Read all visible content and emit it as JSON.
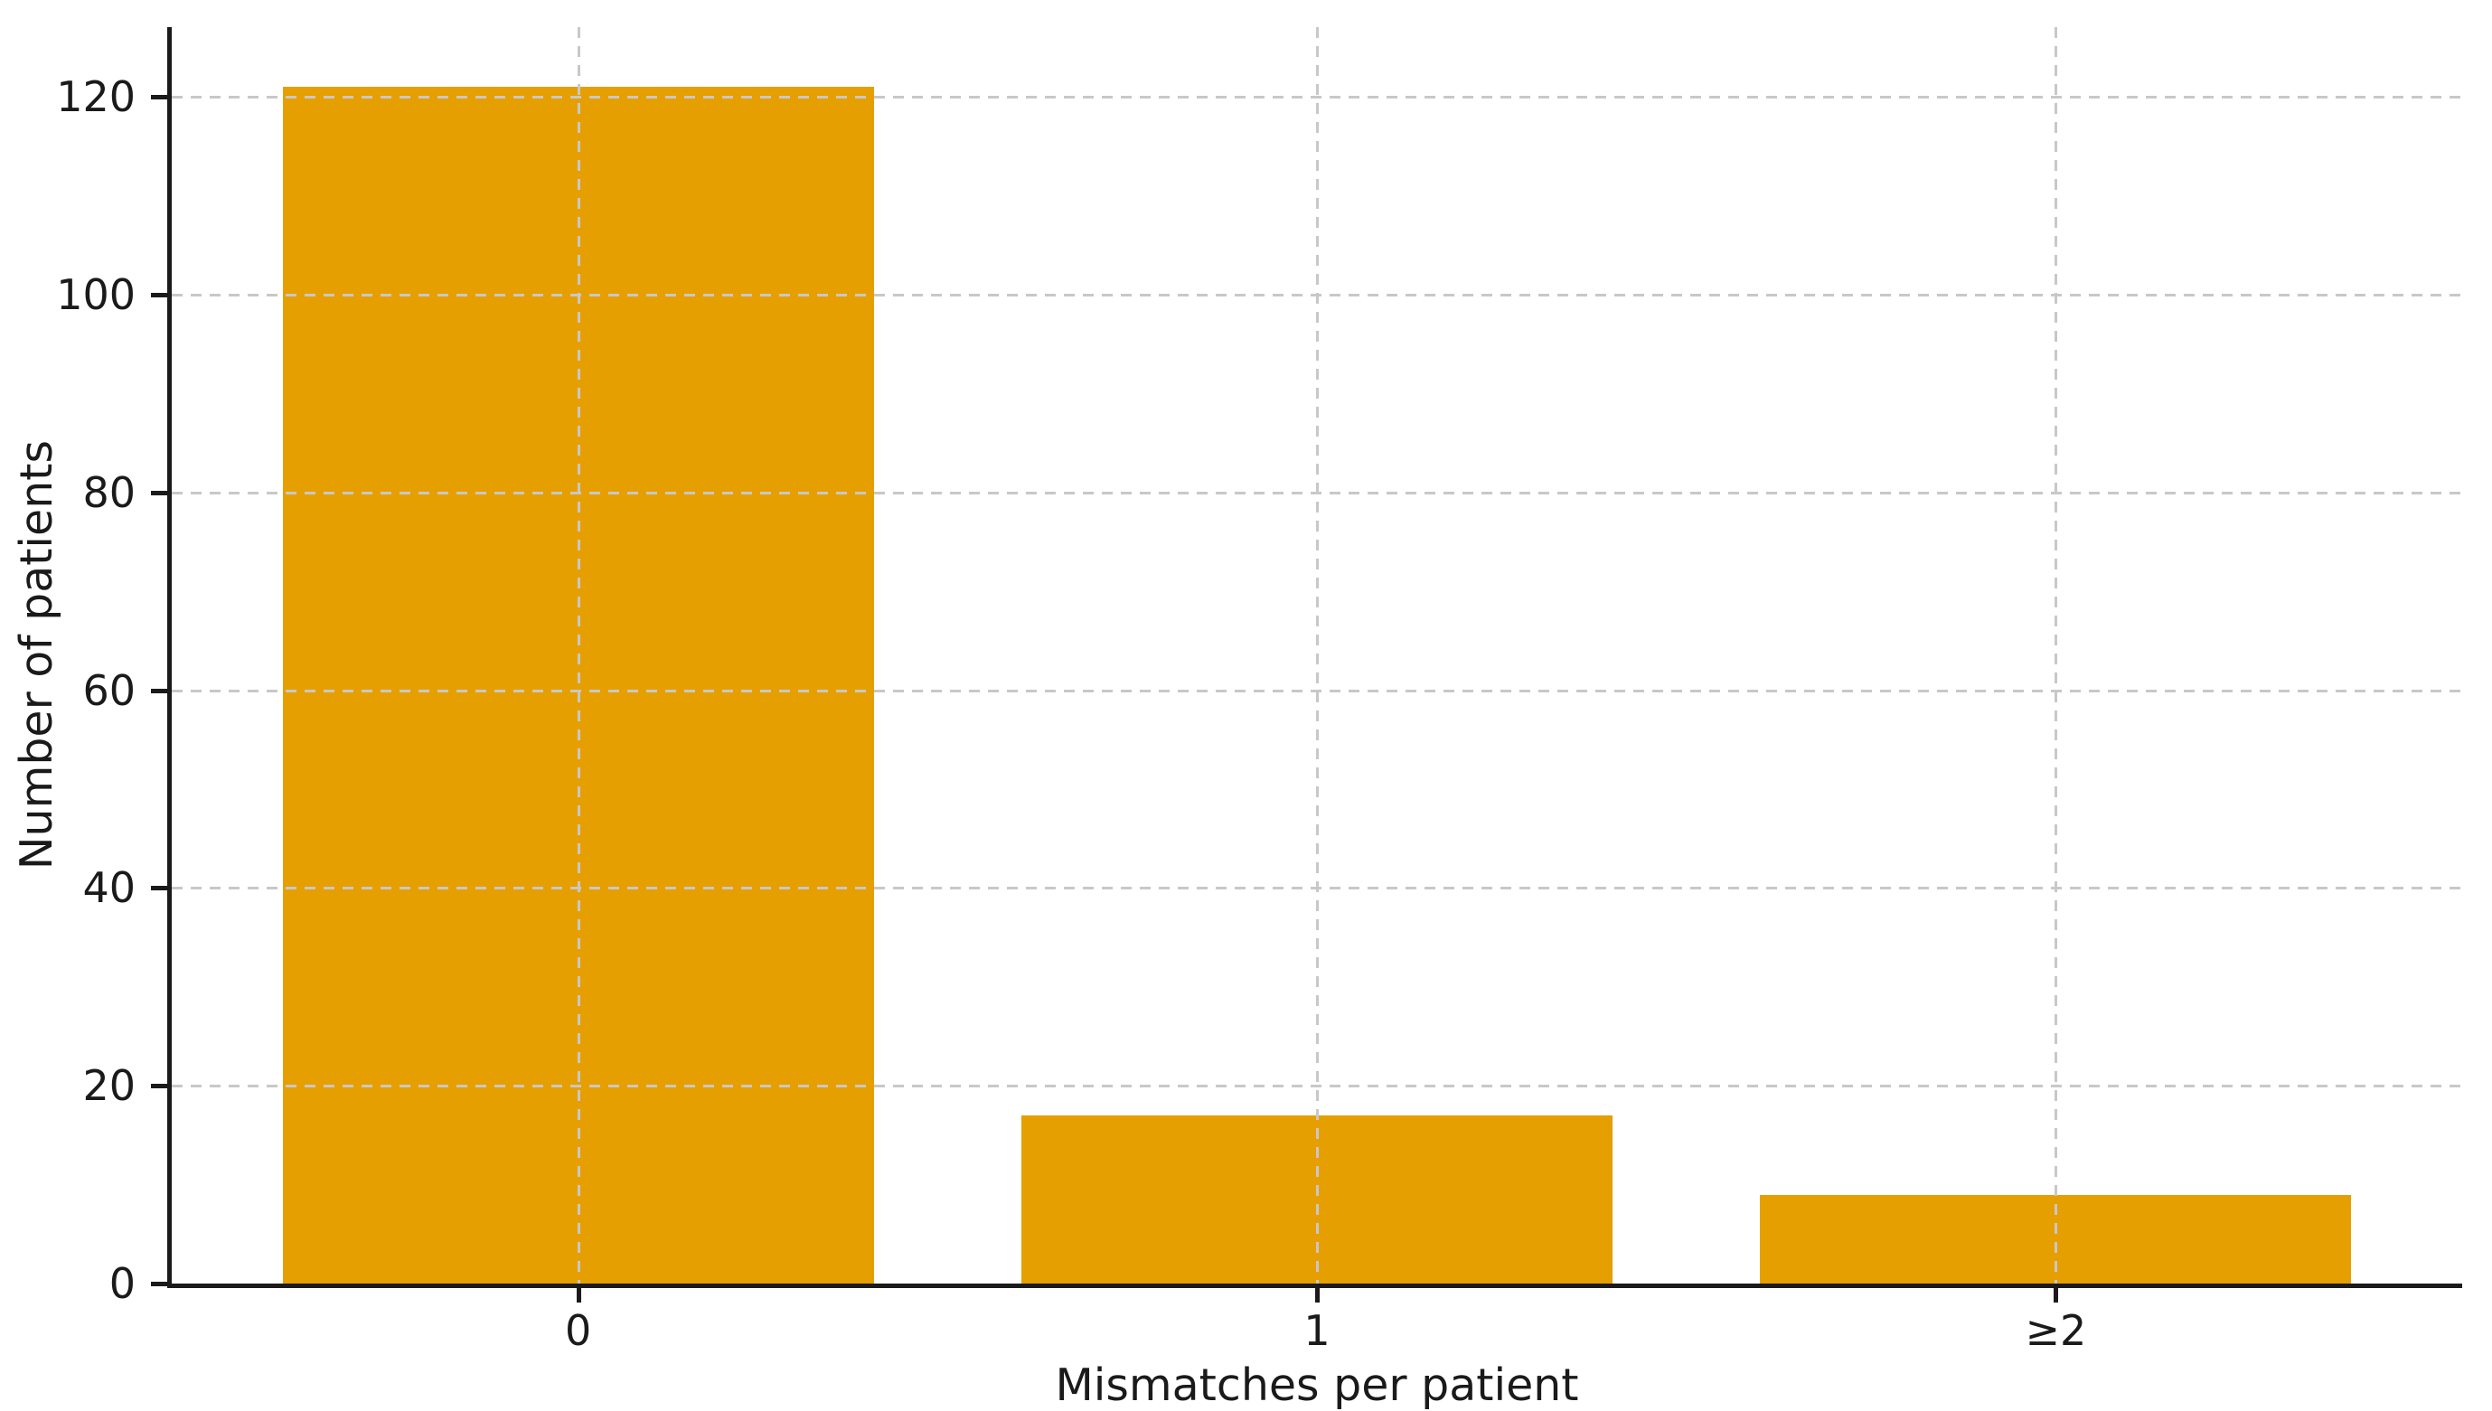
{
  "chart_data": {
    "type": "bar",
    "categories": [
      "0",
      "1",
      "≥2"
    ],
    "values": [
      121,
      17,
      9
    ],
    "title": "",
    "xlabel": "Mismatches per patient",
    "ylabel": "Number of patients",
    "yticks": [
      0,
      20,
      40,
      60,
      80,
      100,
      120
    ],
    "ylim": [
      0,
      127.05
    ],
    "xlim": [
      -0.55,
      2.55
    ],
    "bar_width": 0.8,
    "bar_color": "#E69F00",
    "grid_color": "#C8C8C8",
    "grid_style": "dashed",
    "grid_on_top": true,
    "spine_color": "#1A1A1A",
    "tick_label_color": "#1A1A1A",
    "legend_position": "none",
    "background_color": "#FFFFFF"
  }
}
